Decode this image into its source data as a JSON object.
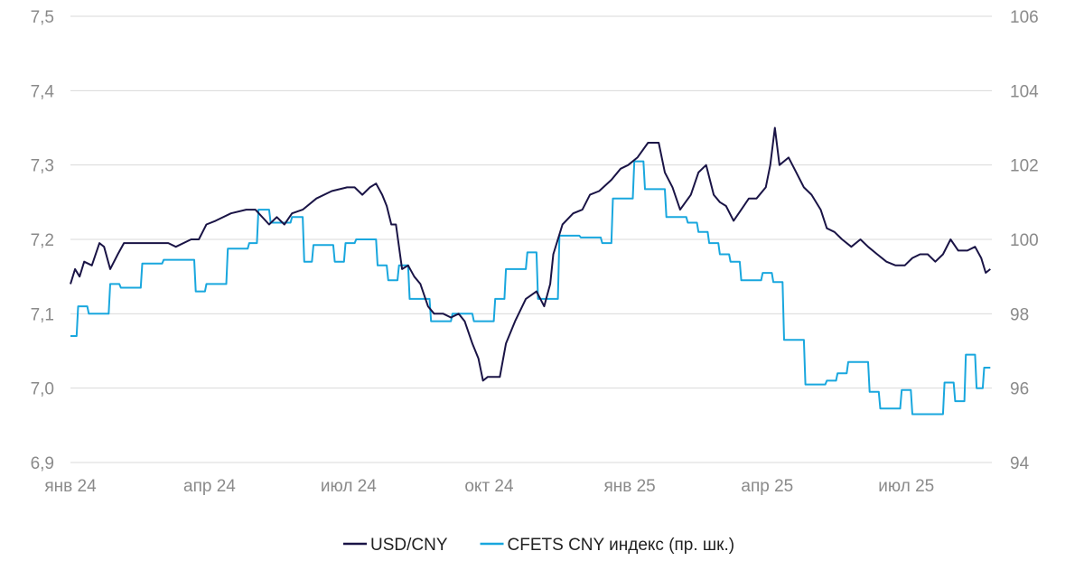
{
  "chart_data": {
    "type": "line",
    "title": "",
    "xlabel": "",
    "ylabel": "",
    "y2label": "",
    "x_tick_labels": [
      "янв 24",
      "апр 24",
      "июл 24",
      "окт 24",
      "янв 25",
      "апр 25",
      "июл 25"
    ],
    "x_ticks": [
      "2024-01-01",
      "2024-04-01",
      "2024-07-01",
      "2024-10-01",
      "2025-01-01",
      "2025-04-01",
      "2025-07-01"
    ],
    "xlim": [
      "2024-01-01",
      "2025-08-26"
    ],
    "ylim": [
      6.9,
      7.5
    ],
    "y_ticks": [
      6.9,
      7.0,
      7.1,
      7.2,
      7.3,
      7.4,
      7.5
    ],
    "y_tick_labels": [
      "6,9",
      "7,0",
      "7,1",
      "7,2",
      "7,3",
      "7,4",
      "7,5"
    ],
    "y2lim": [
      94,
      106
    ],
    "y2_ticks": [
      94,
      96,
      98,
      100,
      102,
      104,
      106
    ],
    "y2_tick_labels": [
      "94",
      "96",
      "98",
      "100",
      "102",
      "104",
      "106"
    ],
    "grid": true,
    "legend_position": "bottom",
    "series": [
      {
        "name": "USD/CNY",
        "axis": "left",
        "color": "#1a1446",
        "points": [
          [
            "2024-01-01",
            7.14
          ],
          [
            "2024-01-04",
            7.16
          ],
          [
            "2024-01-07",
            7.15
          ],
          [
            "2024-01-10",
            7.17
          ],
          [
            "2024-01-15",
            7.165
          ],
          [
            "2024-01-20",
            7.195
          ],
          [
            "2024-01-23",
            7.19
          ],
          [
            "2024-01-27",
            7.16
          ],
          [
            "2024-02-01",
            7.18
          ],
          [
            "2024-02-05",
            7.195
          ],
          [
            "2024-02-15",
            7.195
          ],
          [
            "2024-02-25",
            7.195
          ],
          [
            "2024-03-05",
            7.195
          ],
          [
            "2024-03-10",
            7.19
          ],
          [
            "2024-03-20",
            7.2
          ],
          [
            "2024-03-25",
            7.2
          ],
          [
            "2024-03-30",
            7.22
          ],
          [
            "2024-04-05",
            7.225
          ],
          [
            "2024-04-15",
            7.235
          ],
          [
            "2024-04-25",
            7.24
          ],
          [
            "2024-05-01",
            7.24
          ],
          [
            "2024-05-10",
            7.22
          ],
          [
            "2024-05-15",
            7.23
          ],
          [
            "2024-05-20",
            7.22
          ],
          [
            "2024-05-25",
            7.235
          ],
          [
            "2024-06-01",
            7.24
          ],
          [
            "2024-06-10",
            7.255
          ],
          [
            "2024-06-20",
            7.265
          ],
          [
            "2024-06-30",
            7.27
          ],
          [
            "2024-07-05",
            7.27
          ],
          [
            "2024-07-10",
            7.26
          ],
          [
            "2024-07-15",
            7.27
          ],
          [
            "2024-07-19",
            7.275
          ],
          [
            "2024-07-23",
            7.26
          ],
          [
            "2024-07-26",
            7.245
          ],
          [
            "2024-07-29",
            7.22
          ],
          [
            "2024-08-01",
            7.22
          ],
          [
            "2024-08-05",
            7.16
          ],
          [
            "2024-08-09",
            7.165
          ],
          [
            "2024-08-13",
            7.15
          ],
          [
            "2024-08-17",
            7.14
          ],
          [
            "2024-08-22",
            7.11
          ],
          [
            "2024-08-26",
            7.1
          ],
          [
            "2024-09-01",
            7.1
          ],
          [
            "2024-09-06",
            7.095
          ],
          [
            "2024-09-11",
            7.1
          ],
          [
            "2024-09-15",
            7.09
          ],
          [
            "2024-09-20",
            7.06
          ],
          [
            "2024-09-24",
            7.04
          ],
          [
            "2024-09-27",
            7.01
          ],
          [
            "2024-09-30",
            7.015
          ],
          [
            "2024-10-08",
            7.015
          ],
          [
            "2024-10-12",
            7.06
          ],
          [
            "2024-10-18",
            7.09
          ],
          [
            "2024-10-25",
            7.12
          ],
          [
            "2024-11-01",
            7.13
          ],
          [
            "2024-11-06",
            7.11
          ],
          [
            "2024-11-10",
            7.14
          ],
          [
            "2024-11-12",
            7.18
          ],
          [
            "2024-11-18",
            7.22
          ],
          [
            "2024-11-25",
            7.235
          ],
          [
            "2024-12-01",
            7.24
          ],
          [
            "2024-12-06",
            7.26
          ],
          [
            "2024-12-12",
            7.265
          ],
          [
            "2024-12-20",
            7.28
          ],
          [
            "2024-12-26",
            7.295
          ],
          [
            "2024-12-31",
            7.3
          ],
          [
            "2025-01-06",
            7.31
          ],
          [
            "2025-01-13",
            7.33
          ],
          [
            "2025-01-20",
            7.33
          ],
          [
            "2025-01-24",
            7.29
          ],
          [
            "2025-01-29",
            7.27
          ],
          [
            "2025-02-03",
            7.24
          ],
          [
            "2025-02-10",
            7.26
          ],
          [
            "2025-02-15",
            7.29
          ],
          [
            "2025-02-20",
            7.3
          ],
          [
            "2025-02-25",
            7.26
          ],
          [
            "2025-03-01",
            7.25
          ],
          [
            "2025-03-05",
            7.245
          ],
          [
            "2025-03-10",
            7.225
          ],
          [
            "2025-03-15",
            7.24
          ],
          [
            "2025-03-20",
            7.255
          ],
          [
            "2025-03-25",
            7.255
          ],
          [
            "2025-03-31",
            7.27
          ],
          [
            "2025-04-03",
            7.3
          ],
          [
            "2025-04-06",
            7.35
          ],
          [
            "2025-04-09",
            7.3
          ],
          [
            "2025-04-15",
            7.31
          ],
          [
            "2025-04-20",
            7.29
          ],
          [
            "2025-04-25",
            7.27
          ],
          [
            "2025-04-30",
            7.26
          ],
          [
            "2025-05-06",
            7.24
          ],
          [
            "2025-05-10",
            7.215
          ],
          [
            "2025-05-15",
            7.21
          ],
          [
            "2025-05-20",
            7.2
          ],
          [
            "2025-05-26",
            7.19
          ],
          [
            "2025-06-01",
            7.2
          ],
          [
            "2025-06-06",
            7.19
          ],
          [
            "2025-06-12",
            7.18
          ],
          [
            "2025-06-18",
            7.17
          ],
          [
            "2025-06-24",
            7.165
          ],
          [
            "2025-06-30",
            7.165
          ],
          [
            "2025-07-05",
            7.175
          ],
          [
            "2025-07-10",
            7.18
          ],
          [
            "2025-07-15",
            7.18
          ],
          [
            "2025-07-20",
            7.17
          ],
          [
            "2025-07-25",
            7.18
          ],
          [
            "2025-07-30",
            7.2
          ],
          [
            "2025-08-04",
            7.185
          ],
          [
            "2025-08-10",
            7.185
          ],
          [
            "2025-08-15",
            7.19
          ],
          [
            "2025-08-19",
            7.175
          ],
          [
            "2025-08-22",
            7.155
          ],
          [
            "2025-08-25",
            7.16
          ]
        ]
      },
      {
        "name": "CFETS CNY индекс (пр. шк.)",
        "axis": "right",
        "color": "#19a7de",
        "points": [
          [
            "2024-01-01",
            97.4
          ],
          [
            "2024-01-05",
            97.4
          ],
          [
            "2024-01-06",
            98.2
          ],
          [
            "2024-01-12",
            98.2
          ],
          [
            "2024-01-13",
            98.0
          ],
          [
            "2024-01-26",
            98.0
          ],
          [
            "2024-01-27",
            98.8
          ],
          [
            "2024-02-02",
            98.8
          ],
          [
            "2024-02-03",
            98.7
          ],
          [
            "2024-02-16",
            98.7
          ],
          [
            "2024-02-17",
            99.35
          ],
          [
            "2024-03-01",
            99.35
          ],
          [
            "2024-03-02",
            99.45
          ],
          [
            "2024-03-22",
            99.45
          ],
          [
            "2024-03-23",
            98.6
          ],
          [
            "2024-03-29",
            98.6
          ],
          [
            "2024-03-30",
            98.8
          ],
          [
            "2024-04-12",
            98.8
          ],
          [
            "2024-04-13",
            99.75
          ],
          [
            "2024-04-26",
            99.75
          ],
          [
            "2024-04-27",
            99.9
          ],
          [
            "2024-05-02",
            99.9
          ],
          [
            "2024-05-03",
            100.8
          ],
          [
            "2024-05-10",
            100.8
          ],
          [
            "2024-05-11",
            100.45
          ],
          [
            "2024-05-24",
            100.45
          ],
          [
            "2024-05-25",
            100.6
          ],
          [
            "2024-06-01",
            100.6
          ],
          [
            "2024-06-02",
            99.4
          ],
          [
            "2024-06-07",
            99.4
          ],
          [
            "2024-06-08",
            99.85
          ],
          [
            "2024-06-21",
            99.85
          ],
          [
            "2024-06-22",
            99.4
          ],
          [
            "2024-06-28",
            99.4
          ],
          [
            "2024-06-29",
            99.9
          ],
          [
            "2024-07-05",
            99.9
          ],
          [
            "2024-07-06",
            100.0
          ],
          [
            "2024-07-19",
            100.0
          ],
          [
            "2024-07-20",
            99.3
          ],
          [
            "2024-07-26",
            99.3
          ],
          [
            "2024-07-27",
            98.9
          ],
          [
            "2024-08-02",
            98.9
          ],
          [
            "2024-08-03",
            99.3
          ],
          [
            "2024-08-09",
            99.3
          ],
          [
            "2024-08-10",
            98.4
          ],
          [
            "2024-08-23",
            98.4
          ],
          [
            "2024-08-24",
            97.8
          ],
          [
            "2024-09-06",
            97.8
          ],
          [
            "2024-09-07",
            98.0
          ],
          [
            "2024-09-20",
            98.0
          ],
          [
            "2024-09-21",
            97.8
          ],
          [
            "2024-10-04",
            97.8
          ],
          [
            "2024-10-05",
            98.4
          ],
          [
            "2024-10-11",
            98.4
          ],
          [
            "2024-10-12",
            99.2
          ],
          [
            "2024-10-25",
            99.2
          ],
          [
            "2024-10-26",
            99.65
          ],
          [
            "2024-11-01",
            99.65
          ],
          [
            "2024-11-02",
            98.4
          ],
          [
            "2024-11-15",
            98.4
          ],
          [
            "2024-11-16",
            100.1
          ],
          [
            "2024-11-29",
            100.1
          ],
          [
            "2024-11-30",
            100.05
          ],
          [
            "2024-12-13",
            100.05
          ],
          [
            "2024-12-14",
            99.9
          ],
          [
            "2024-12-20",
            99.9
          ],
          [
            "2024-12-21",
            101.1
          ],
          [
            "2025-01-03",
            101.1
          ],
          [
            "2025-01-04",
            102.1
          ],
          [
            "2025-01-10",
            102.1
          ],
          [
            "2025-01-11",
            101.35
          ],
          [
            "2025-01-24",
            101.35
          ],
          [
            "2025-01-25",
            100.6
          ],
          [
            "2025-02-07",
            100.6
          ],
          [
            "2025-02-08",
            100.45
          ],
          [
            "2025-02-14",
            100.45
          ],
          [
            "2025-02-15",
            100.2
          ],
          [
            "2025-02-21",
            100.2
          ],
          [
            "2025-02-22",
            99.9
          ],
          [
            "2025-02-28",
            99.9
          ],
          [
            "2025-03-01",
            99.6
          ],
          [
            "2025-03-07",
            99.6
          ],
          [
            "2025-03-08",
            99.4
          ],
          [
            "2025-03-14",
            99.4
          ],
          [
            "2025-03-15",
            98.9
          ],
          [
            "2025-03-28",
            98.9
          ],
          [
            "2025-03-29",
            99.1
          ],
          [
            "2025-04-04",
            99.1
          ],
          [
            "2025-04-05",
            98.85
          ],
          [
            "2025-04-11",
            98.85
          ],
          [
            "2025-04-12",
            97.3
          ],
          [
            "2025-04-25",
            97.3
          ],
          [
            "2025-04-26",
            96.1
          ],
          [
            "2025-05-09",
            96.1
          ],
          [
            "2025-05-10",
            96.2
          ],
          [
            "2025-05-16",
            96.2
          ],
          [
            "2025-05-17",
            96.4
          ],
          [
            "2025-05-23",
            96.4
          ],
          [
            "2025-05-24",
            96.7
          ],
          [
            "2025-06-06",
            96.7
          ],
          [
            "2025-06-07",
            95.9
          ],
          [
            "2025-06-13",
            95.9
          ],
          [
            "2025-06-14",
            95.45
          ],
          [
            "2025-06-27",
            95.45
          ],
          [
            "2025-06-28",
            95.95
          ],
          [
            "2025-07-04",
            95.95
          ],
          [
            "2025-07-05",
            95.3
          ],
          [
            "2025-07-25",
            95.3
          ],
          [
            "2025-07-26",
            96.15
          ],
          [
            "2025-08-01",
            96.15
          ],
          [
            "2025-08-02",
            95.65
          ],
          [
            "2025-08-08",
            95.65
          ],
          [
            "2025-08-09",
            96.9
          ],
          [
            "2025-08-15",
            96.9
          ],
          [
            "2025-08-16",
            96.0
          ],
          [
            "2025-08-20",
            96.0
          ],
          [
            "2025-08-21",
            96.55
          ],
          [
            "2025-08-25",
            96.55
          ]
        ]
      }
    ]
  }
}
